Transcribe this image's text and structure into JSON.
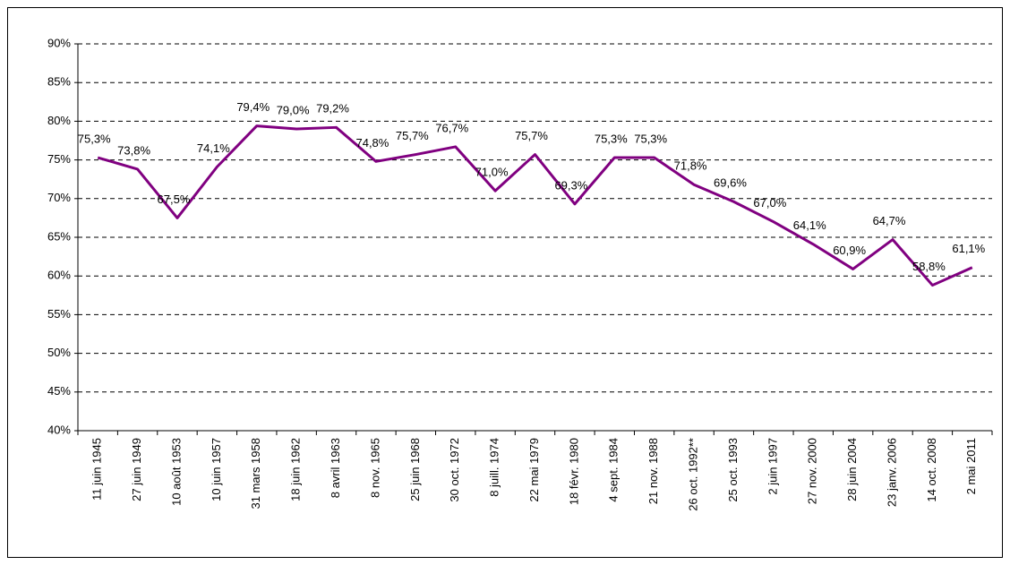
{
  "chart_data": {
    "type": "line",
    "categories": [
      "11 juin 1945",
      "27 juin 1949",
      "10 août 1953",
      "10 juin 1957",
      "31 mars 1958",
      "18 juin 1962",
      "8 avril 1963",
      "8 nov. 1965",
      "25 juin 1968",
      "30 oct. 1972",
      "8 juill. 1974",
      "22 mai 1979",
      "18 févr. 1980",
      "4 sept. 1984",
      "21 nov. 1988",
      "26 oct. 1992**",
      "25 oct. 1993",
      "2 juin 1997",
      "27 nov. 2000",
      "28 juin 2004",
      "23 janv. 2006",
      "14 oct. 2008",
      "2 mai 2011"
    ],
    "values": [
      75.3,
      73.8,
      67.5,
      74.1,
      79.4,
      79.0,
      79.2,
      74.8,
      75.7,
      76.7,
      71.0,
      75.7,
      69.3,
      75.3,
      75.3,
      71.8,
      69.6,
      67.0,
      64.1,
      60.9,
      64.7,
      58.8,
      61.1
    ],
    "value_labels": [
      "75,3%",
      "73,8%",
      "67,5%",
      "74,1%",
      "79,4%",
      "79,0%",
      "79,2%",
      "74,8%",
      "75,7%",
      "76,7%",
      "71,0%",
      "75,7%",
      "69,3%",
      "75,3%",
      "75,3%",
      "71,8%",
      "69,6%",
      "67,0%",
      "64,1%",
      "60,9%",
      "64,7%",
      "58,8%",
      "61,1%"
    ],
    "color": "#800080",
    "ylim": [
      40,
      90
    ],
    "yticks": [
      {
        "value": 40,
        "label": "40%"
      },
      {
        "value": 45,
        "label": "45%"
      },
      {
        "value": 50,
        "label": "50%"
      },
      {
        "value": 55,
        "label": "55%"
      },
      {
        "value": 60,
        "label": "60%"
      },
      {
        "value": 65,
        "label": "65%"
      },
      {
        "value": 70,
        "label": "70%"
      },
      {
        "value": 75,
        "label": "75%"
      },
      {
        "value": 80,
        "label": "80%"
      },
      {
        "value": 85,
        "label": "85%"
      },
      {
        "value": 90,
        "label": "90%"
      }
    ],
    "grid": true
  }
}
